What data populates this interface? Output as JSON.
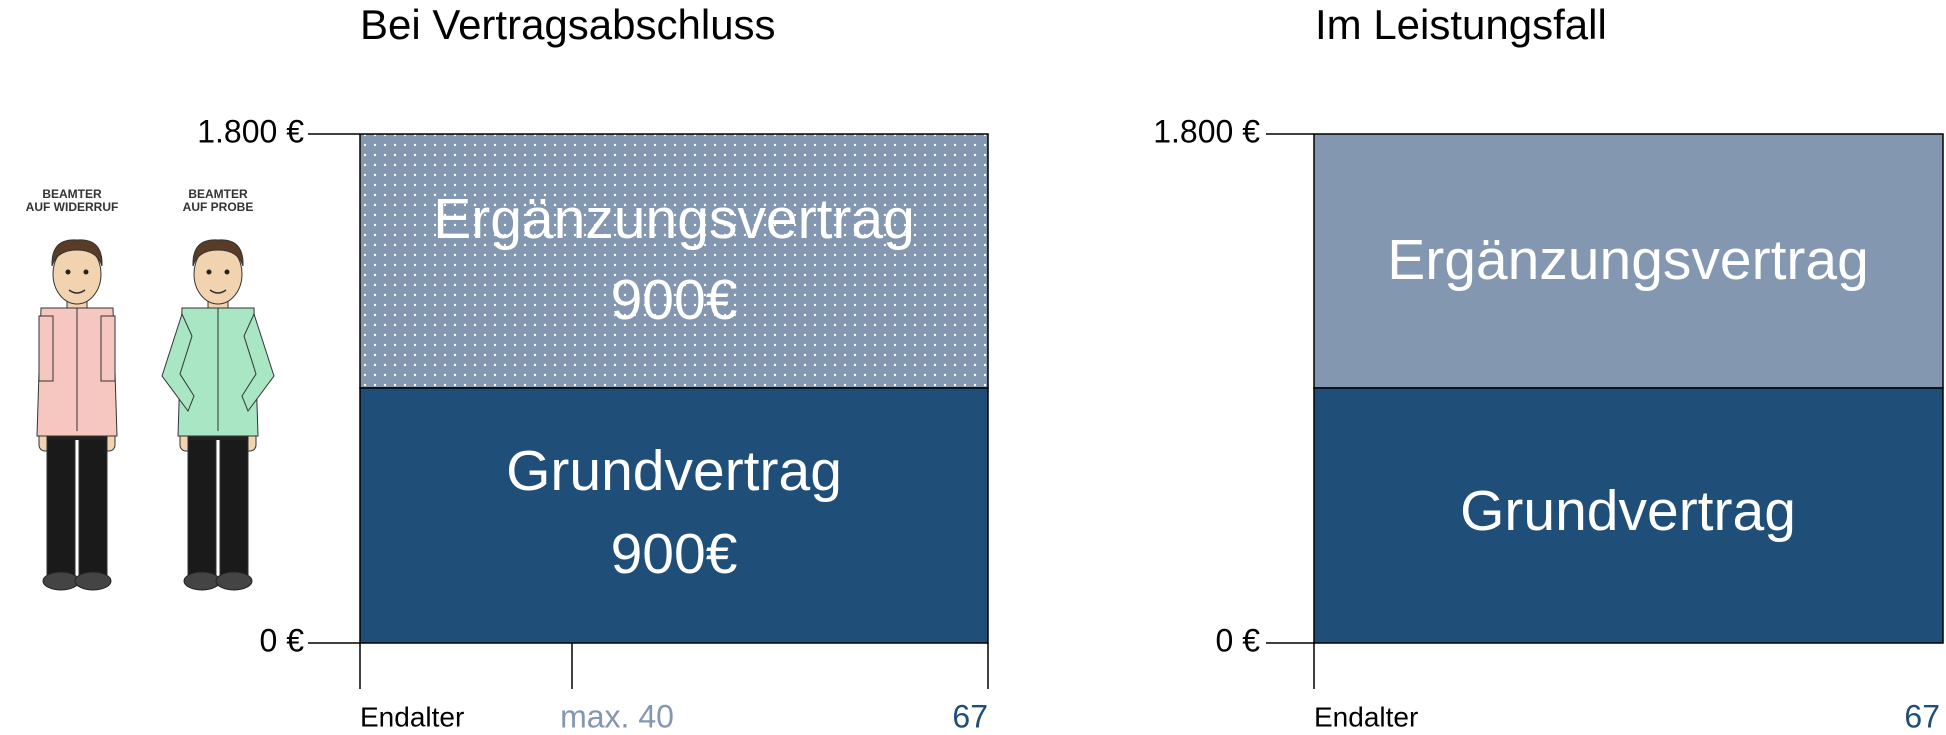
{
  "panels": [
    {
      "title": "Bei Vertragsabschluss",
      "y_labels": [
        "1.800 €",
        "0 €"
      ],
      "segments": [
        {
          "name": "Ergänzungsvertrag",
          "amount": "900€"
        },
        {
          "name": "Grundvertrag",
          "amount": "900€"
        }
      ],
      "x_labels": [
        "Endalter",
        "max. 40",
        "67"
      ]
    },
    {
      "title": "Im Leistungsfall",
      "y_labels": [
        "1.800 €",
        "0 €"
      ],
      "segments": [
        {
          "name": "Ergänzungsvertrag"
        },
        {
          "name": "Grundvertrag"
        }
      ],
      "x_labels": [
        "Endalter",
        "67"
      ]
    }
  ],
  "figures": [
    {
      "label": [
        "BEAMTER",
        "AUF WIDERRUF"
      ]
    },
    {
      "label": [
        "BEAMTER",
        "AUF PROBE"
      ]
    }
  ]
}
